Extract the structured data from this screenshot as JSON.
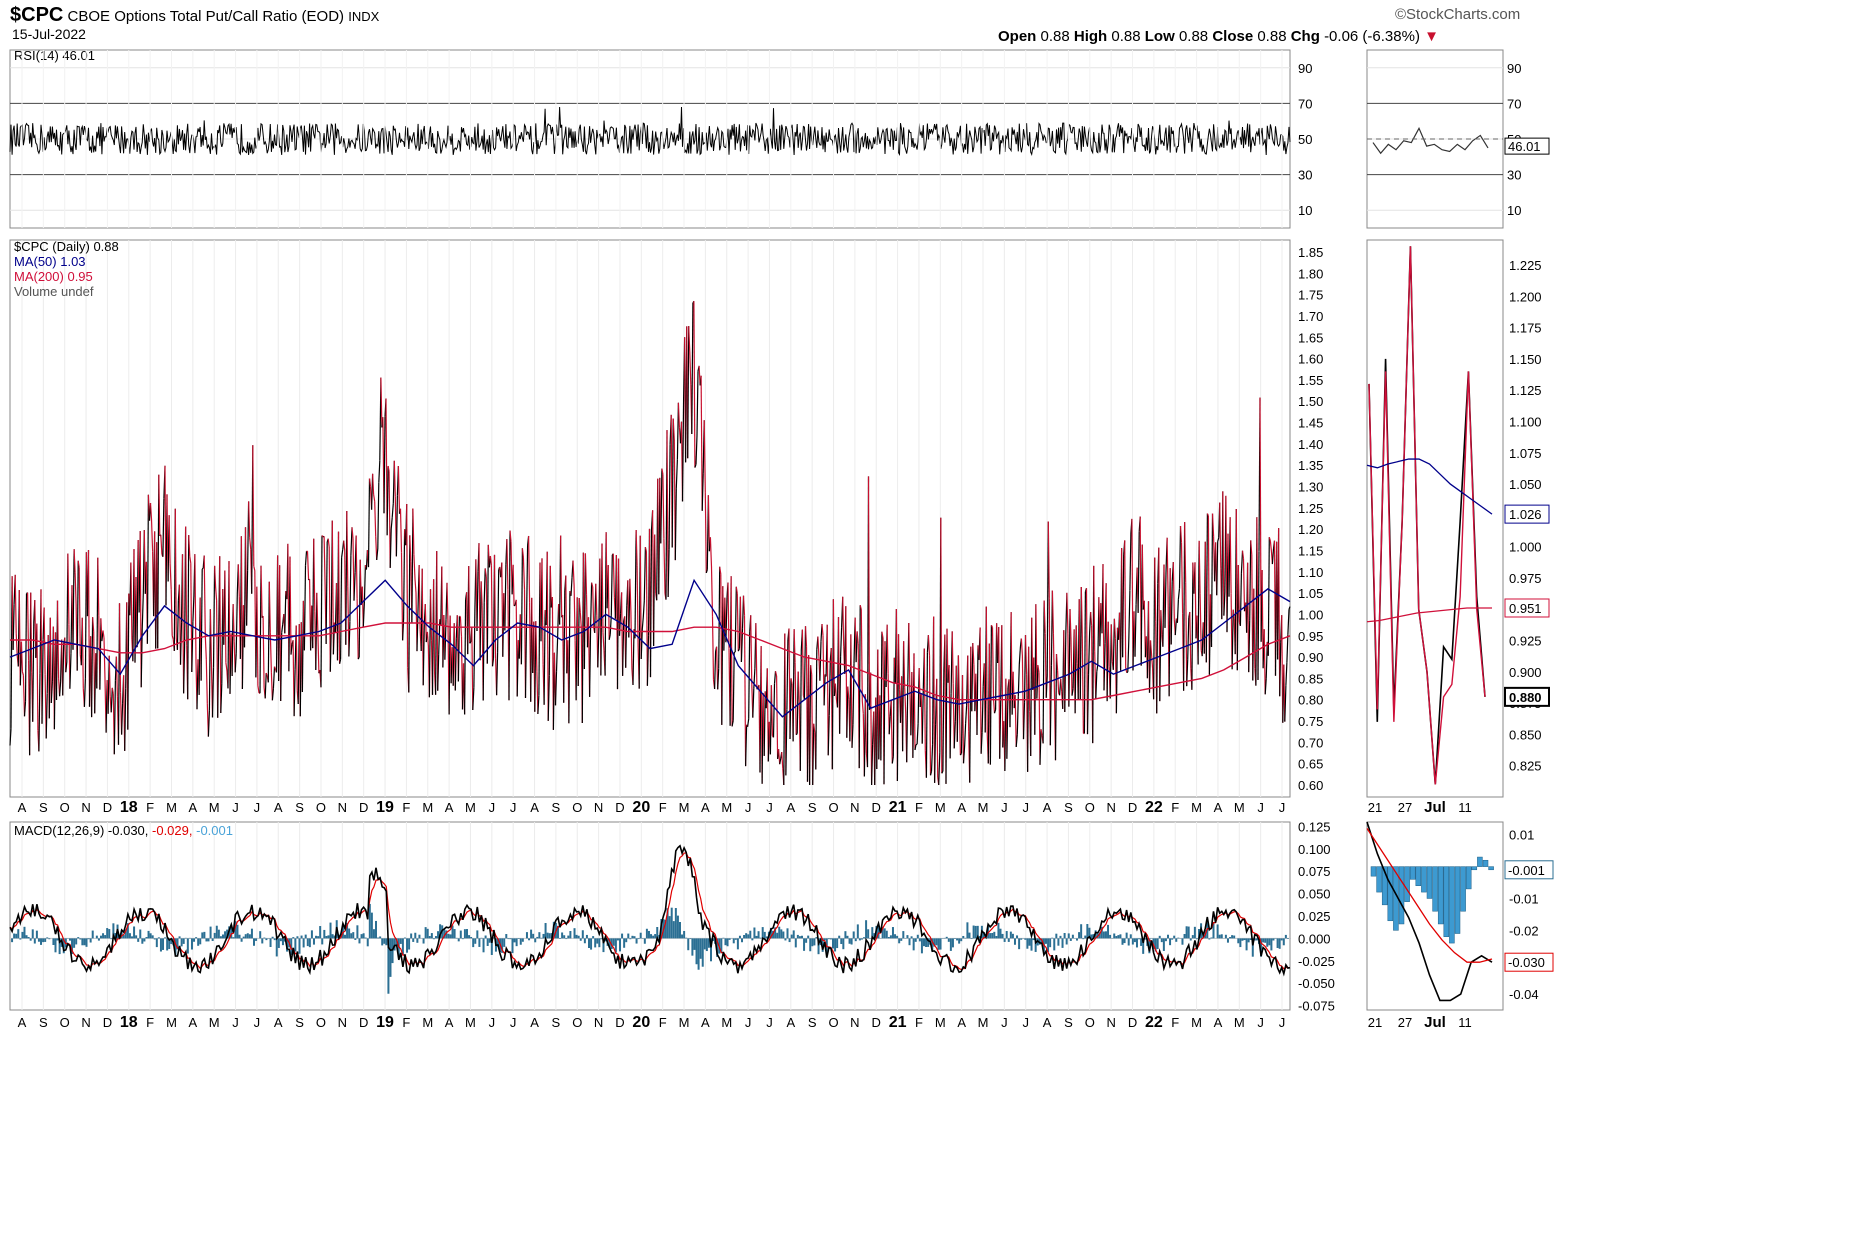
{
  "header": {
    "symbol": "$CPC",
    "name": "CBOE Options Total Put/Call Ratio (EOD)",
    "exchange": "INDX",
    "date": "15-Jul-2022",
    "brand": "©StockCharts.com",
    "open_label": "Open",
    "open": "0.88",
    "high_label": "High",
    "high": "0.88",
    "low_label": "Low",
    "low": "0.88",
    "close_label": "Close",
    "close": "0.88",
    "chg_label": "Chg",
    "chg": "-0.06 (-6.38%)"
  },
  "colors": {
    "price": "#000000",
    "price_down": "#c8102e",
    "ma50": "#00008b",
    "ma200": "#d0103a",
    "macd_hist": "#1f77b4",
    "signal": "#e00000"
  },
  "rsi_panel": {
    "legend": "RSI(14) 46.01",
    "ticks": [
      "90",
      "70",
      "50",
      "30",
      "10"
    ],
    "last_label": "46.01"
  },
  "price_panel": {
    "legend": [
      "$CPC (Daily) 0.88",
      "MA(50) 1.03",
      "MA(200) 0.95",
      "Volume undef"
    ],
    "ticks": [
      "1.85",
      "1.80",
      "1.75",
      "1.70",
      "1.65",
      "1.60",
      "1.55",
      "1.50",
      "1.45",
      "1.40",
      "1.35",
      "1.30",
      "1.25",
      "1.20",
      "1.15",
      "1.10",
      "1.05",
      "1.00",
      "0.95",
      "0.90",
      "0.85",
      "0.80",
      "0.75",
      "0.70",
      "0.65",
      "0.60"
    ],
    "zoom_ticks": [
      "1.225",
      "1.200",
      "1.175",
      "1.150",
      "1.125",
      "1.100",
      "1.075",
      "1.050",
      "1.025",
      "1.000",
      "0.975",
      "0.950",
      "0.925",
      "0.900",
      "0.875",
      "0.850",
      "0.825"
    ],
    "zoom_labels": [
      "1.026",
      "0.951",
      "0.880"
    ]
  },
  "macd_panel": {
    "legend_name": "MACD(12,26,9)",
    "legend_macd": "-0.030",
    "legend_signal": "-0.029",
    "legend_hist": "-0.001",
    "ticks": [
      "0.125",
      "0.100",
      "0.075",
      "0.050",
      "0.025",
      "0.000",
      "-0.025",
      "-0.050",
      "-0.075"
    ],
    "zoom_ticks": [
      "0.01",
      "-0.01",
      "-0.02",
      "-0.04"
    ],
    "zoom_labels": [
      "-0.001",
      "-0.030"
    ]
  },
  "x_axis": {
    "months": [
      "A",
      "S",
      "O",
      "N",
      "D",
      "18",
      "F",
      "M",
      "A",
      "M",
      "J",
      "J",
      "A",
      "S",
      "O",
      "N",
      "D",
      "19",
      "F",
      "M",
      "A",
      "M",
      "J",
      "J",
      "A",
      "S",
      "O",
      "N",
      "D",
      "20",
      "F",
      "M",
      "A",
      "M",
      "J",
      "J",
      "A",
      "S",
      "O",
      "N",
      "D",
      "21",
      "F",
      "M",
      "A",
      "M",
      "J",
      "J",
      "A",
      "S",
      "O",
      "N",
      "D",
      "22",
      "F",
      "M",
      "A",
      "M",
      "J",
      "J"
    ],
    "zoom": [
      "21",
      "27",
      "Jul",
      "11"
    ]
  },
  "chart_data": {
    "type": "line",
    "title": "$CPC CBOE Options Total Put/Call Ratio (EOD)",
    "x_range": [
      "Aug 2017",
      "15-Jul-2022"
    ],
    "series": [
      {
        "name": "$CPC (Daily)",
        "last": 0.88,
        "ylim": [
          0.6,
          1.85
        ],
        "anchors": [
          0.9,
          0.86,
          0.92,
          1.0,
          0.95,
          0.85,
          1.05,
          1.15,
          1.0,
          0.92,
          0.95,
          1.02,
          1.0,
          0.95,
          0.98,
          1.05,
          1.12,
          1.4,
          1.0,
          0.98,
          0.95,
          0.95,
          0.98,
          1.0,
          0.96,
          0.92,
          0.95,
          1.05,
          1.0,
          1.02,
          1.3,
          1.55,
          0.95,
          0.85,
          0.8,
          0.75,
          0.78,
          0.82,
          0.85,
          0.78,
          0.8,
          0.82,
          0.8,
          0.78,
          0.82,
          0.8,
          0.82,
          0.85,
          0.88,
          0.9,
          0.95,
          1.05,
          0.95,
          1.0,
          1.05,
          1.1,
          1.05,
          1.0,
          0.9
        ]
      },
      {
        "name": "MA(50)",
        "last": 1.03,
        "values": [
          0.9,
          0.92,
          0.94,
          0.93,
          0.92,
          0.86,
          0.95,
          1.02,
          0.98,
          0.95,
          0.96,
          0.95,
          0.94,
          0.95,
          0.96,
          0.98,
          1.03,
          1.08,
          1.02,
          0.97,
          0.93,
          0.88,
          0.94,
          0.98,
          0.97,
          0.94,
          0.96,
          1.0,
          0.97,
          0.92,
          0.93,
          1.08,
          1.0,
          0.88,
          0.82,
          0.76,
          0.8,
          0.84,
          0.87,
          0.78,
          0.8,
          0.82,
          0.8,
          0.79,
          0.8,
          0.81,
          0.82,
          0.84,
          0.86,
          0.89,
          0.86,
          0.88,
          0.9,
          0.92,
          0.94,
          0.98,
          1.02,
          1.06,
          1.03
        ]
      },
      {
        "name": "MA(200)",
        "last": 0.95,
        "values": [
          0.94,
          0.94,
          0.93,
          0.93,
          0.92,
          0.91,
          0.91,
          0.92,
          0.94,
          0.95,
          0.95,
          0.95,
          0.95,
          0.95,
          0.95,
          0.96,
          0.97,
          0.98,
          0.98,
          0.98,
          0.97,
          0.97,
          0.97,
          0.97,
          0.97,
          0.97,
          0.97,
          0.97,
          0.96,
          0.96,
          0.96,
          0.97,
          0.97,
          0.96,
          0.94,
          0.92,
          0.9,
          0.89,
          0.88,
          0.86,
          0.84,
          0.83,
          0.81,
          0.8,
          0.8,
          0.8,
          0.8,
          0.8,
          0.8,
          0.8,
          0.81,
          0.82,
          0.83,
          0.84,
          0.85,
          0.87,
          0.9,
          0.93,
          0.95
        ]
      },
      {
        "name": "RSI(14)",
        "last": 46.01,
        "ylim": [
          0,
          100
        ]
      },
      {
        "name": "MACD(12,26,9)",
        "last": -0.03,
        "signal": -0.029,
        "histogram": -0.001,
        "ylim": [
          -0.08,
          0.13
        ]
      }
    ]
  }
}
